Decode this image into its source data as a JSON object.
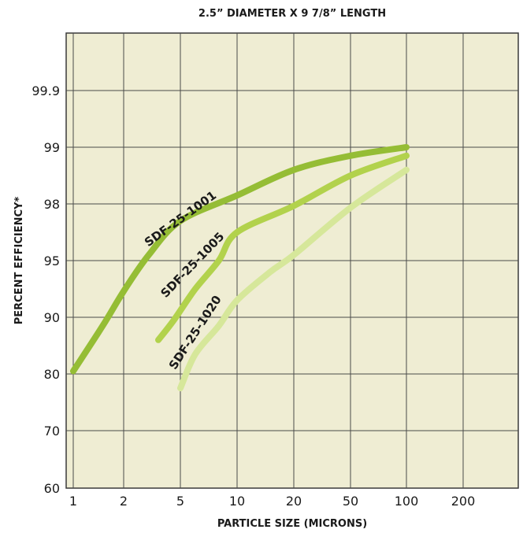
{
  "chart_data": {
    "type": "line",
    "title": "2.5” DIAMETER X 9 7/8” LENGTH",
    "xlabel": "PARTICLE SIZE (MICRONS)",
    "ylabel": "PERCENT EFFICIENCY*",
    "x_scale": "log",
    "y_scale": "probability",
    "x_ticks": [
      "1",
      "2",
      "5",
      "10",
      "20",
      "50",
      "100",
      "200"
    ],
    "y_ticks": [
      "60",
      "70",
      "80",
      "90",
      "95",
      "98",
      "99",
      "99.9"
    ],
    "grid": true,
    "series": [
      {
        "name": "SDF-25-1001",
        "color": "#95bd35",
        "x": [
          1,
          1.5,
          2,
          3,
          5,
          10,
          20,
          50,
          100
        ],
        "y": [
          80.5,
          88.5,
          92.3,
          95.3,
          97.1,
          98.15,
          98.6,
          98.85,
          99
        ]
      },
      {
        "name": "SDF-25-1005",
        "color": "#b2d24c",
        "x": [
          3.5,
          4.5,
          6,
          8,
          10,
          20,
          50,
          100
        ],
        "y": [
          86,
          89.5,
          92.5,
          95,
          96.5,
          97.9,
          98.5,
          98.85
        ]
      },
      {
        "name": "SDF-25-1020",
        "color": "#d6e79a",
        "x": [
          5,
          6,
          8,
          10,
          15,
          20,
          50,
          100
        ],
        "y": [
          77.5,
          83.5,
          88.5,
          91.5,
          94,
          95.3,
          97.8,
          98.6
        ]
      }
    ]
  }
}
